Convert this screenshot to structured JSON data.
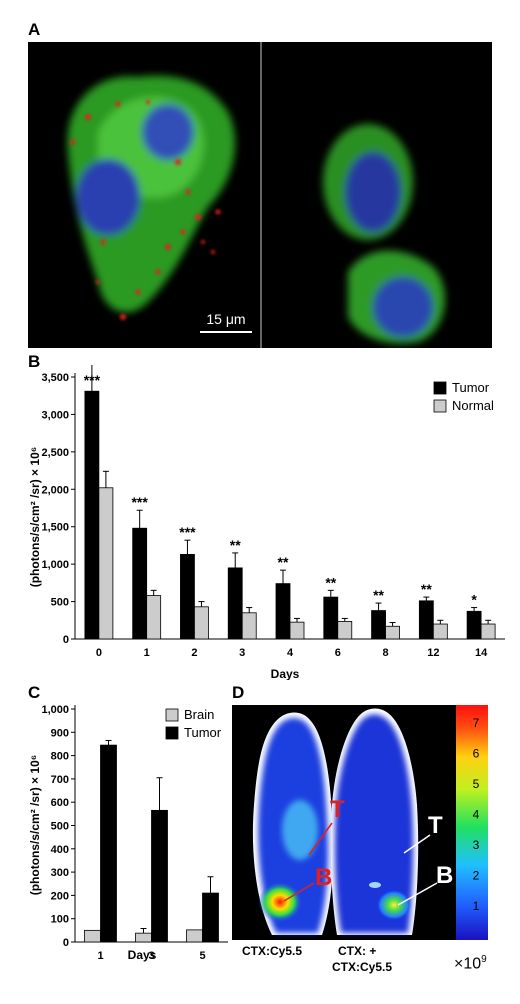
{
  "panels": {
    "a": {
      "label": "A",
      "scale_bar": "15 μm"
    },
    "b": {
      "label": "B"
    },
    "c": {
      "label": "C"
    },
    "d": {
      "label": "D",
      "left_caption": "CTX:Cy5.5",
      "right_caption_line1": "CTX: +",
      "right_caption_line2": "CTX:Cy5.5",
      "markers": {
        "tumor_left": "T",
        "brain_left": "B",
        "tumor_right": "T",
        "brain_right": "B"
      },
      "colorbar_ticks": [
        "7",
        "6",
        "5",
        "4",
        "3",
        "2",
        "1"
      ],
      "colorbar_unit": "×10",
      "colorbar_unit_exp": "9"
    }
  },
  "chart_data": [
    {
      "type": "bar",
      "ylabel": "(photons/s/cm² /sr) × 10⁶",
      "ytick_labels": [
        "0",
        "500",
        "1,000",
        "1,500",
        "2,000",
        "2,500",
        "3,000",
        "3,500"
      ],
      "xlabel": "Days",
      "ylim": [
        0,
        3500
      ],
      "categories": [
        "0",
        "1",
        "2",
        "3",
        "4",
        "6",
        "8",
        "12",
        "14"
      ],
      "series": [
        {
          "name": "Tumor",
          "color": "#000000",
          "values": [
            3310,
            1480,
            1130,
            950,
            740,
            560,
            380,
            510,
            370
          ],
          "errors": [
            560,
            240,
            190,
            200,
            180,
            90,
            100,
            50,
            50
          ]
        },
        {
          "name": "Normal",
          "color": "#cccccc",
          "values": [
            2020,
            580,
            430,
            350,
            225,
            235,
            170,
            200,
            200
          ],
          "errors": [
            220,
            70,
            70,
            70,
            50,
            40,
            50,
            50,
            50
          ]
        }
      ],
      "significance": [
        "***",
        "***",
        "***",
        "**",
        "**",
        "**",
        "**",
        "**",
        "*"
      ],
      "legend": "top-right"
    },
    {
      "type": "bar",
      "ylabel": "(photons/s/cm² /sr) × 10⁶",
      "ytick_labels": [
        "0",
        "100",
        "200",
        "300",
        "400",
        "500",
        "600",
        "700",
        "800",
        "900",
        "1,000"
      ],
      "xlabel": "Days",
      "ylim": [
        0,
        1000
      ],
      "categories": [
        "1",
        "3",
        "5"
      ],
      "series": [
        {
          "name": "Brain",
          "color": "#cccccc",
          "values": [
            50,
            38,
            52
          ],
          "errors": [
            0,
            20,
            0
          ]
        },
        {
          "name": "Tumor",
          "color": "#000000",
          "values": [
            845,
            565,
            210
          ],
          "errors": [
            20,
            140,
            70
          ]
        }
      ],
      "legend": "top-right"
    }
  ]
}
